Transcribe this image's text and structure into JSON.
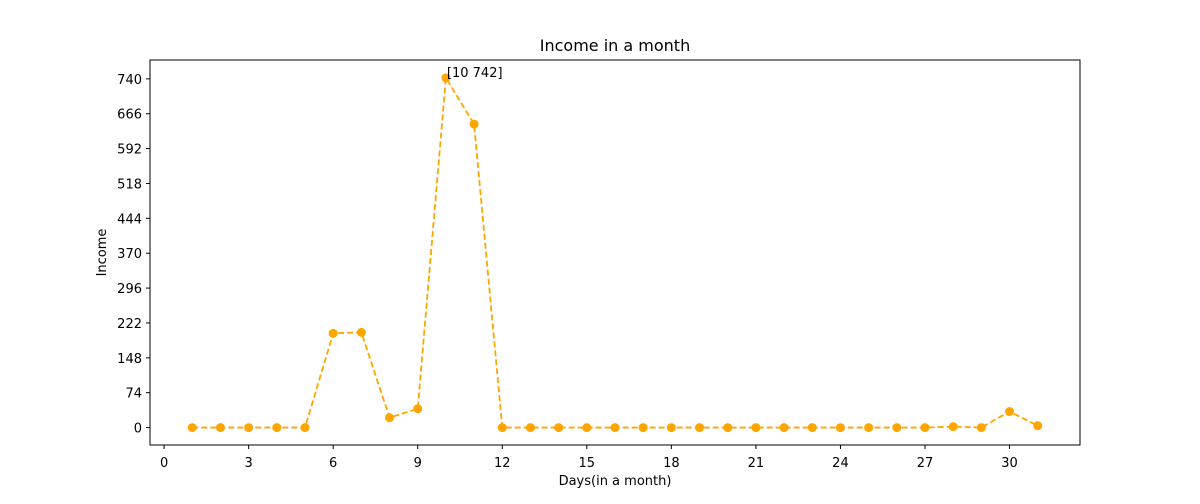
{
  "chart_data": {
    "type": "line",
    "title": "Income in a month",
    "xlabel": "Days(in a month)",
    "ylabel": "Income",
    "x_ticks": [
      0,
      3,
      6,
      9,
      12,
      15,
      18,
      21,
      24,
      27,
      30
    ],
    "y_ticks": [
      0,
      74,
      148,
      222,
      296,
      370,
      444,
      518,
      592,
      666,
      740
    ],
    "xlim": [
      -0.5,
      32.5
    ],
    "ylim": [
      -37,
      780
    ],
    "grid": false,
    "colors": {
      "series": "#ffa500",
      "axis": "#000000"
    },
    "series": [
      {
        "line_style": "dashed",
        "marker": "circle",
        "x": [
          1,
          2,
          3,
          4,
          5,
          6,
          7,
          8,
          9,
          10,
          11,
          12,
          13,
          14,
          15,
          16,
          17,
          18,
          19,
          20,
          21,
          22,
          23,
          24,
          25,
          26,
          27,
          28,
          29,
          30,
          31
        ],
        "values": [
          0,
          0,
          0,
          0,
          0,
          200,
          202,
          21,
          40,
          742,
          644,
          0,
          0,
          0,
          0,
          0,
          0,
          0,
          0,
          0,
          0,
          0,
          0,
          0,
          0,
          0,
          0,
          2,
          0,
          34,
          4
        ]
      }
    ],
    "annotations": [
      {
        "text": "[10 742]",
        "x": 10,
        "y": 742
      }
    ]
  }
}
